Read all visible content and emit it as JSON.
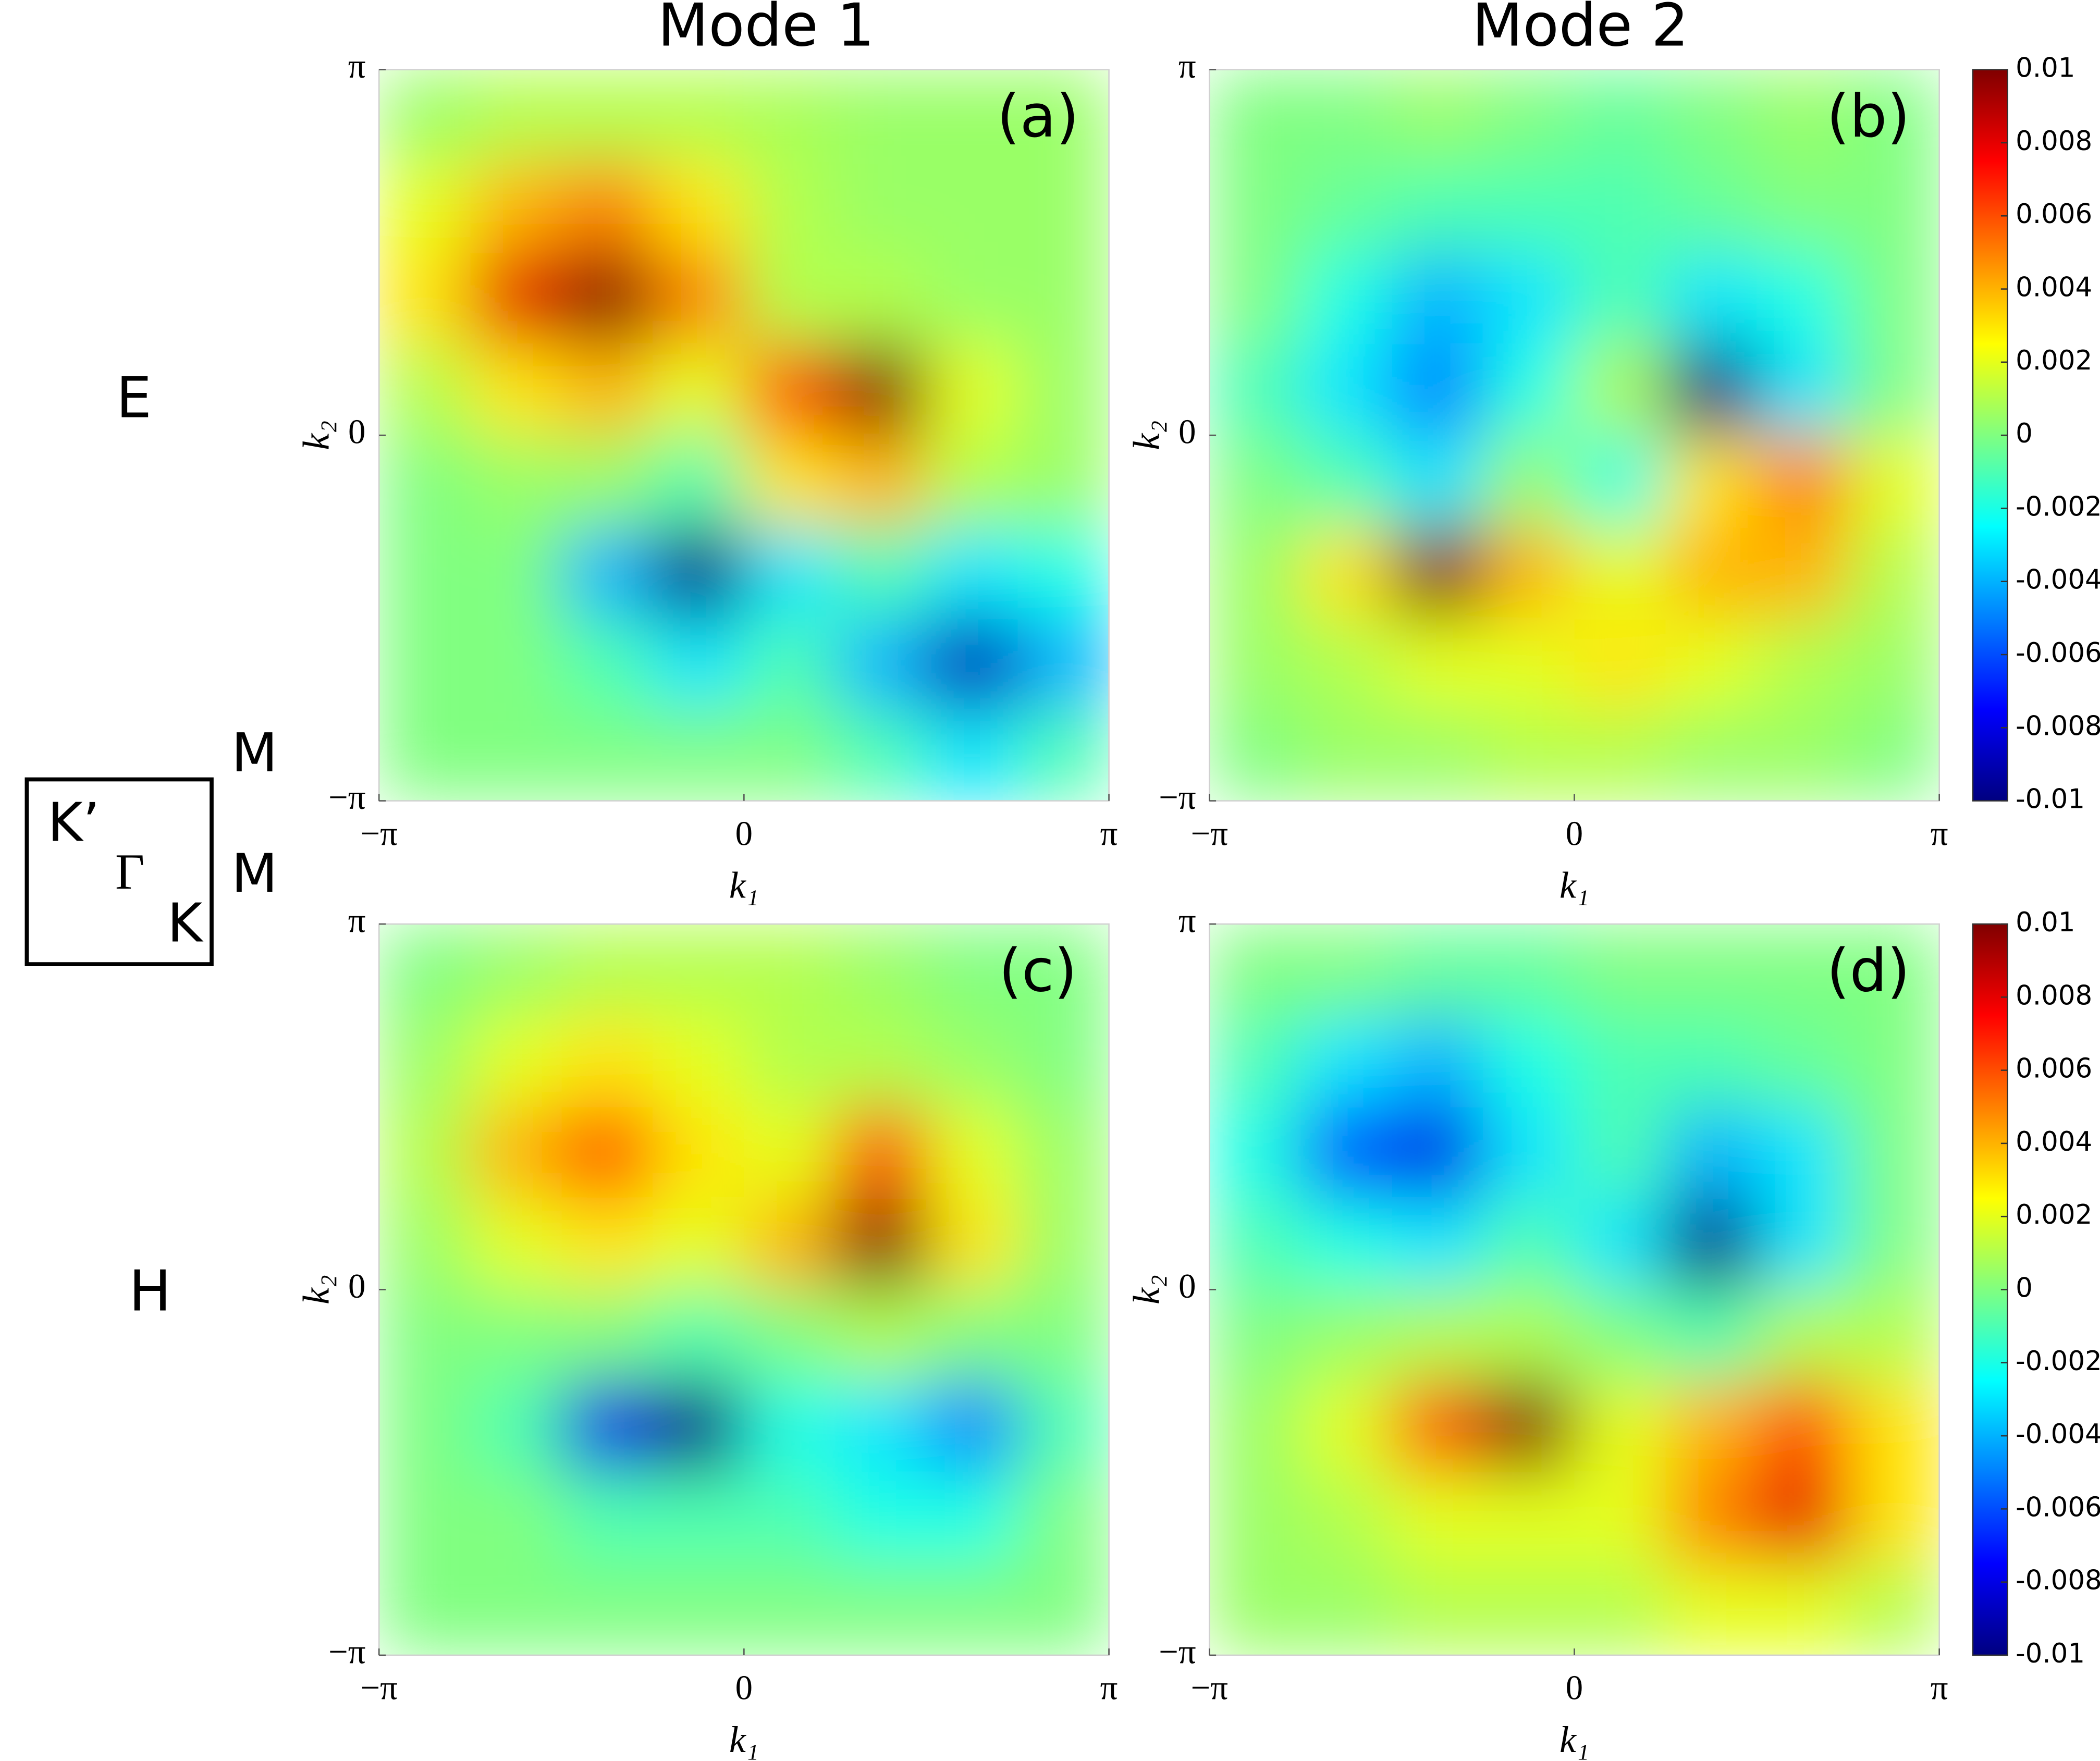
{
  "figure": {
    "column_titles": [
      "Mode 1",
      "Mode 2"
    ],
    "row_labels": [
      "E",
      "H"
    ],
    "legend_box": {
      "labels": [
        "K’",
        "Γ",
        "K"
      ],
      "side_labels": [
        "M",
        "M"
      ]
    }
  },
  "chart_data": [
    {
      "type": "heatmap",
      "label": "(a)",
      "xlabel": "k₁",
      "ylabel": "k₂",
      "colormap": "jet",
      "colorbar": false,
      "xlim": [
        -3.14159,
        3.14159
      ],
      "ylim": [
        -3.14159,
        3.14159
      ],
      "zlim": [
        -0.01,
        0.01
      ],
      "xticks": [
        {
          "value": -3.14159,
          "label": "−π"
        },
        0,
        {
          "value": 3.14159,
          "label": "π"
        }
      ],
      "yticks": [
        {
          "value": -3.14159,
          "label": "−π"
        },
        0,
        {
          "value": 3.14159,
          "label": "π"
        }
      ],
      "z": [
        [
          0.0005,
          0.001,
          0.001,
          0.001,
          0.0008,
          0.0005,
          0.0005,
          0.0005
        ],
        [
          0.002,
          0.004,
          0.005,
          0.003,
          0.001,
          0.0005,
          0.0005,
          0.0005
        ],
        [
          0.003,
          0.008,
          0.01,
          0.005,
          0.001,
          0.001,
          0.0005,
          0.0005
        ],
        [
          0.001,
          0.003,
          0.004,
          0.002,
          0.006,
          0.01,
          0.002,
          0.0005
        ],
        [
          0,
          0.0005,
          0.0005,
          -0.001,
          0.003,
          0.004,
          0.001,
          0.0005
        ],
        [
          0,
          0,
          -0.004,
          -0.01,
          -0.003,
          -0.001,
          -0.003,
          -0.002
        ],
        [
          0,
          0,
          -0.001,
          -0.003,
          -0.001,
          -0.004,
          -0.009,
          -0.004
        ],
        [
          0,
          0,
          0,
          0,
          0,
          -0.001,
          -0.003,
          -0.001
        ]
      ]
    },
    {
      "type": "heatmap",
      "label": "(b)",
      "xlabel": "k₁",
      "ylabel": "k₂",
      "colormap": "jet",
      "colorbar": true,
      "xlim": [
        -3.14159,
        3.14159
      ],
      "ylim": [
        -3.14159,
        3.14159
      ],
      "zlim": [
        -0.01,
        0.01
      ],
      "xticks": [
        {
          "value": -3.14159,
          "label": "−π"
        },
        0,
        {
          "value": 3.14159,
          "label": "π"
        }
      ],
      "yticks": [
        {
          "value": -3.14159,
          "label": "−π"
        },
        0,
        {
          "value": 3.14159,
          "label": "π"
        }
      ],
      "zticks": [
        0.01,
        0.008,
        0.006,
        0.004,
        0.002,
        0,
        -0.002,
        -0.004,
        -0.006,
        -0.008,
        -0.01
      ],
      "z": [
        [
          0,
          0,
          0.0005,
          0,
          -0.0005,
          0,
          0.0005,
          0
        ],
        [
          0,
          -0.0005,
          -0.001,
          -0.001,
          -0.001,
          -0.0005,
          0,
          0
        ],
        [
          0,
          -0.002,
          -0.004,
          -0.003,
          -0.001,
          -0.003,
          -0.002,
          0
        ],
        [
          -0.001,
          -0.003,
          -0.005,
          -0.002,
          0.001,
          -0.01,
          -0.003,
          0
        ],
        [
          0,
          -0.001,
          -0.003,
          0.0005,
          -0.002,
          0.003,
          0.005,
          0.002
        ],
        [
          0.0005,
          0.003,
          0.01,
          0.004,
          0.002,
          0.004,
          0.004,
          0.001
        ],
        [
          0.0005,
          0.001,
          0.002,
          0.002,
          0.003,
          0.002,
          0.001,
          0.0005
        ],
        [
          0,
          0.0005,
          0.0005,
          0.001,
          0.001,
          0.0005,
          0.0005,
          0
        ]
      ]
    },
    {
      "type": "heatmap",
      "label": "(c)",
      "xlabel": "k₁",
      "ylabel": "k₂",
      "colormap": "jet",
      "colorbar": false,
      "xlim": [
        -3.14159,
        3.14159
      ],
      "ylim": [
        -3.14159,
        3.14159
      ],
      "zlim": [
        -0.01,
        0.01
      ],
      "xticks": [
        {
          "value": -3.14159,
          "label": "−π"
        },
        0,
        {
          "value": 3.14159,
          "label": "π"
        }
      ],
      "yticks": [
        {
          "value": -3.14159,
          "label": "−π"
        },
        0,
        {
          "value": 3.14159,
          "label": "π"
        }
      ],
      "z": [
        [
          0,
          0.0005,
          0.001,
          0.001,
          0.001,
          0.0005,
          0,
          0
        ],
        [
          0.0005,
          0.002,
          0.003,
          0.002,
          0.001,
          0.001,
          0.0005,
          0
        ],
        [
          0.001,
          0.004,
          0.006,
          0.003,
          0.002,
          0.006,
          0.002,
          0.0005
        ],
        [
          0.0005,
          0.002,
          0.003,
          0.002,
          0.004,
          0.01,
          0.003,
          0.0005
        ],
        [
          0,
          0,
          0,
          -0.001,
          0,
          0.001,
          0,
          0
        ],
        [
          0,
          -0.001,
          -0.008,
          -0.01,
          -0.002,
          -0.003,
          -0.005,
          -0.001
        ],
        [
          0,
          0,
          -0.001,
          -0.001,
          -0.001,
          -0.002,
          -0.002,
          0
        ],
        [
          0,
          0,
          0,
          0,
          0,
          0,
          0,
          0
        ]
      ]
    },
    {
      "type": "heatmap",
      "label": "(d)",
      "xlabel": "k₁",
      "ylabel": "k₂",
      "colormap": "jet",
      "colorbar": true,
      "xlim": [
        -3.14159,
        3.14159
      ],
      "ylim": [
        -3.14159,
        3.14159
      ],
      "zlim": [
        -0.01,
        0.01
      ],
      "xticks": [
        {
          "value": -3.14159,
          "label": "−π"
        },
        0,
        {
          "value": 3.14159,
          "label": "π"
        }
      ],
      "yticks": [
        {
          "value": -3.14159,
          "label": "−π"
        },
        0,
        {
          "value": 3.14159,
          "label": "π"
        }
      ],
      "zticks": [
        0.01,
        0.008,
        0.006,
        0.004,
        0.002,
        0,
        -0.002,
        -0.004,
        -0.006,
        -0.008,
        -0.01
      ],
      "z": [
        [
          0,
          0,
          -0.0005,
          -0.0005,
          0,
          0,
          0,
          0
        ],
        [
          -0.001,
          -0.003,
          -0.004,
          -0.002,
          -0.001,
          -0.001,
          -0.0005,
          0
        ],
        [
          -0.002,
          -0.006,
          -0.008,
          -0.003,
          -0.001,
          -0.004,
          -0.003,
          0
        ],
        [
          -0.001,
          -0.002,
          -0.003,
          -0.001,
          -0.003,
          -0.01,
          -0.003,
          0
        ],
        [
          0,
          0.0005,
          0.001,
          0.001,
          0,
          -0.001,
          0.001,
          0.001
        ],
        [
          0.0005,
          0.002,
          0.006,
          0.01,
          0.002,
          0.004,
          0.006,
          0.003
        ],
        [
          0.0005,
          0.001,
          0.002,
          0.002,
          0.002,
          0.005,
          0.008,
          0.003
        ],
        [
          0.0005,
          0.0005,
          0.001,
          0.001,
          0.001,
          0.002,
          0.002,
          0.001
        ]
      ]
    }
  ]
}
